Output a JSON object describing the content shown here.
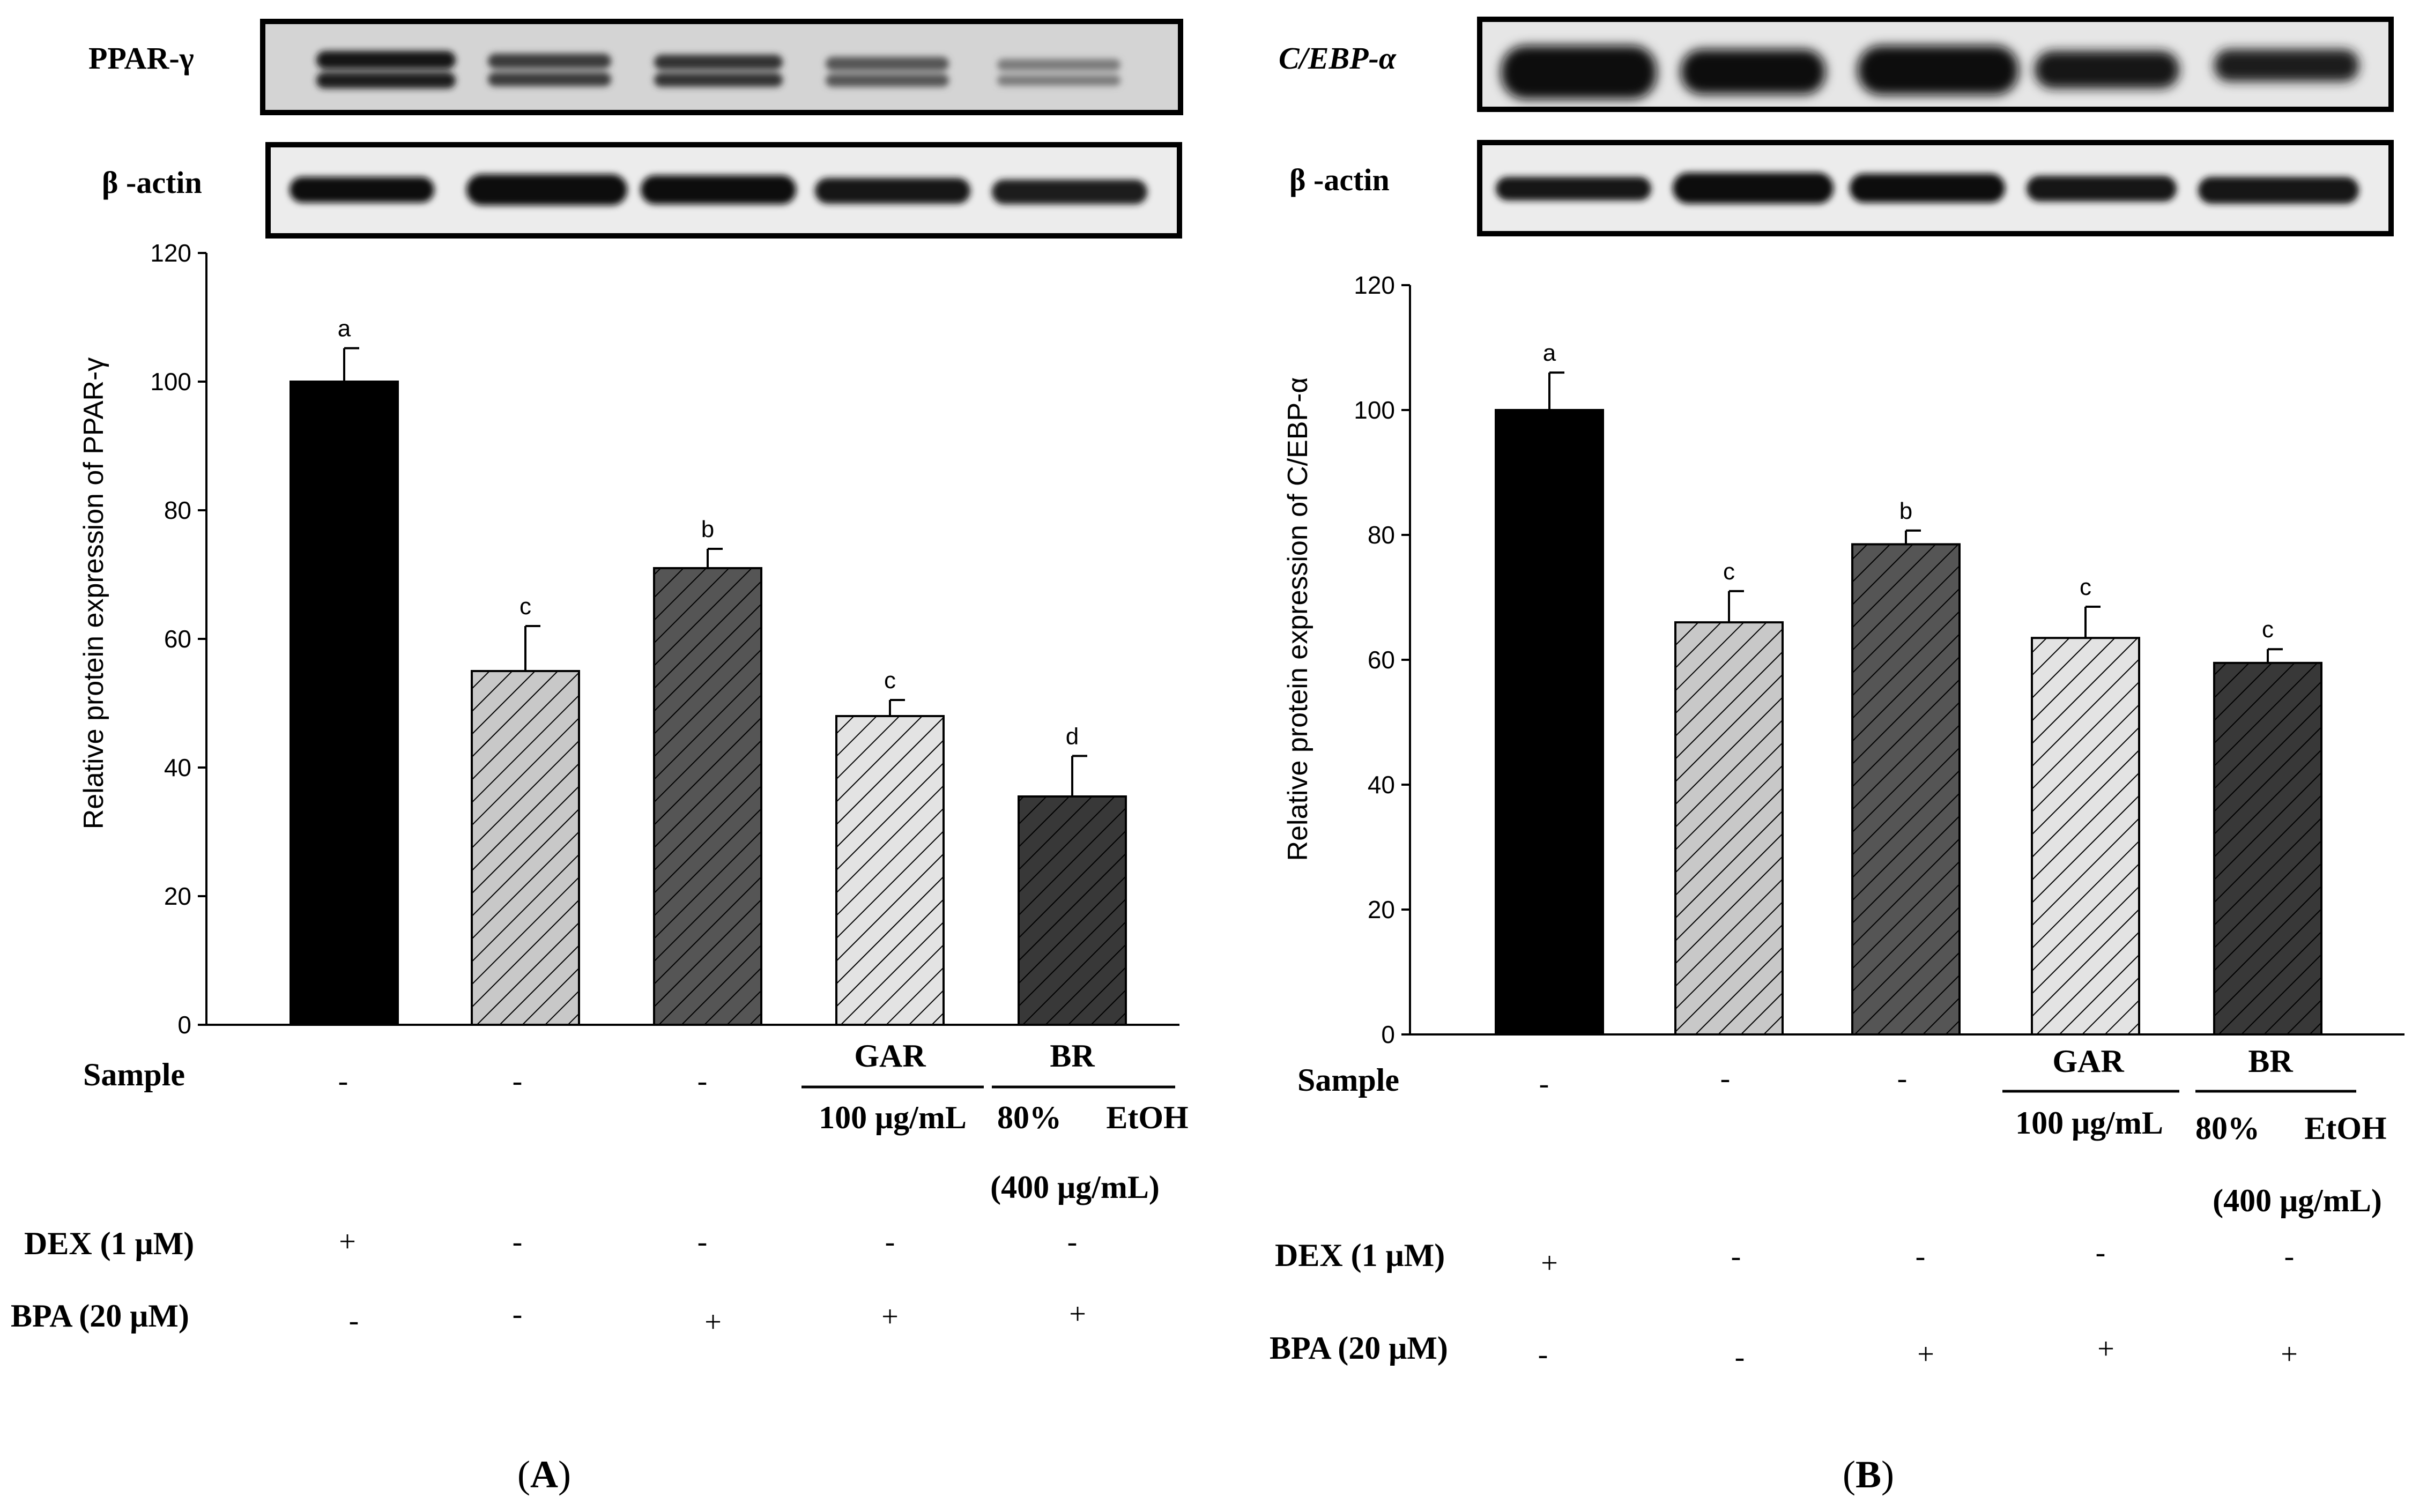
{
  "chart_data": [
    {
      "type": "bar",
      "panel": "A",
      "panel_paren_open": "(",
      "panel_paren_close": ")",
      "blot_labels": [
        "PPAR-γ",
        "β -actin"
      ],
      "ylabel": "Relative protein expression of PPAR-γ",
      "ylim": [
        0,
        120
      ],
      "yticks": [
        "0",
        "20",
        "40",
        "60",
        "80",
        "100",
        "120"
      ],
      "values": [
        100,
        55,
        71,
        48,
        35.5
      ],
      "errors": [
        5.2,
        7,
        3,
        2.5,
        6.3
      ],
      "significance": [
        "a",
        "c",
        "b",
        "c",
        "d"
      ],
      "bar_colors": [
        "#000000",
        "#c8c8c8",
        "#555555",
        "#e3e3e3",
        "#383838"
      ],
      "hatched": [
        false,
        true,
        true,
        true,
        true
      ],
      "table": {
        "sample_label": "Sample",
        "sample": [
          "-",
          "-",
          "-"
        ],
        "gar": "GAR",
        "gar_conc": "100 μg/mL",
        "br": "BR",
        "br_line1a": "80%",
        "br_line1b": "EtOH",
        "br_line2": "(400 μg/mL)",
        "dex_label": "DEX (1 μM)",
        "dex": [
          "+",
          "-",
          "-",
          "-",
          "-"
        ],
        "bpa_label": "BPA (20 μM)",
        "bpa": [
          "-",
          "-",
          "+",
          "+",
          "+"
        ]
      }
    },
    {
      "type": "bar",
      "panel": "B",
      "panel_paren_open": "(",
      "panel_paren_close": ")",
      "blot_labels": [
        "C/EBP-α",
        "β -actin"
      ],
      "ylabel": "Relative protein expression of  C/EBP-α",
      "ylim": [
        0,
        120
      ],
      "yticks": [
        "0",
        "20",
        "40",
        "60",
        "80",
        "100",
        "120"
      ],
      "values": [
        100,
        66,
        78.5,
        63.5,
        59.5
      ],
      "errors": [
        6,
        5,
        2.2,
        5,
        2.2
      ],
      "significance": [
        "a",
        "c",
        "b",
        "c",
        "c"
      ],
      "bar_colors": [
        "#000000",
        "#c8c8c8",
        "#555555",
        "#e3e3e3",
        "#383838"
      ],
      "hatched": [
        false,
        true,
        true,
        true,
        true
      ],
      "table": {
        "sample_label": "Sample",
        "sample": [
          "-",
          "-",
          "-"
        ],
        "gar": "GAR",
        "gar_conc": "100 μg/mL",
        "br": "BR",
        "br_line1a": "80%",
        "br_line1b": "EtOH",
        "br_line2": "(400 μg/mL)",
        "dex_label": "DEX (1 μM)",
        "dex": [
          "+",
          "-",
          "-",
          "-",
          "-"
        ],
        "bpa_label": "BPA (20 μM)",
        "bpa": [
          "-",
          "-",
          "+",
          "+",
          "+"
        ]
      }
    }
  ]
}
